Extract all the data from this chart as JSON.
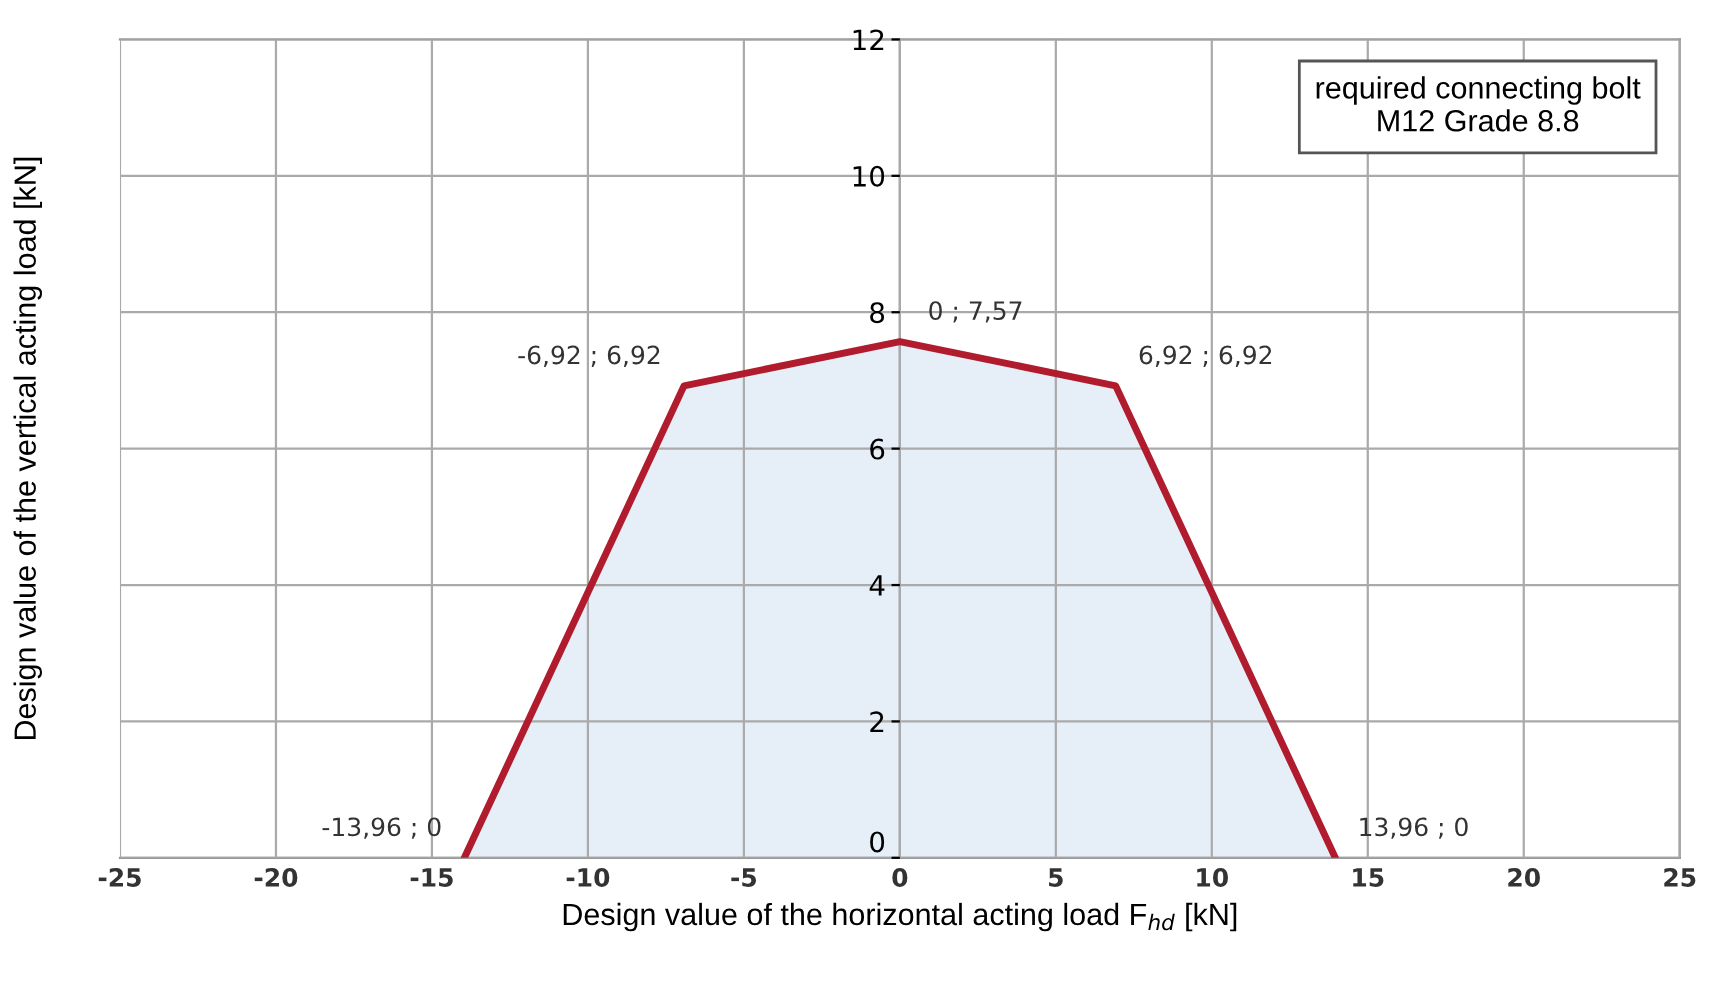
{
  "chart_data": {
    "type": "area",
    "xlabel": "Design value of the horizontal acting load F$_{hd}$ [kN]",
    "ylabel": "Design value of the vertical acting load [kN]",
    "x": [
      -13.96,
      -6.92,
      0,
      6.92,
      13.96
    ],
    "series": [
      {
        "color": "#b01c2e",
        "values": [
          0,
          6.92,
          7.57,
          6.92,
          0
        ]
      }
    ],
    "xlim": [
      -25,
      25
    ],
    "xticks": [
      -25,
      -20,
      -15,
      -10,
      -5,
      0,
      5,
      10,
      15,
      20,
      25
    ],
    "ylim": [
      0,
      12
    ],
    "yticks": [
      0,
      2,
      4,
      6,
      8,
      10,
      12
    ],
    "grid": true,
    "annotations": [
      {
        "text": "-13,96 ; 0",
        "x": -13.96,
        "y": 0
      },
      {
        "text": "-6,92 ; 6,92",
        "x": -6.92,
        "y": 6.92
      },
      {
        "text": "0 ; 7,57",
        "x": 0,
        "y": 7.57
      },
      {
        "text": "6,92 ; 6,92",
        "x": 6.92,
        "y": 6.92
      },
      {
        "text": "13,96 ; 0",
        "x": 13.96,
        "y": 0
      },
      "required connecting bolt\nM12 Grade 8.8"
    ]
  }
}
